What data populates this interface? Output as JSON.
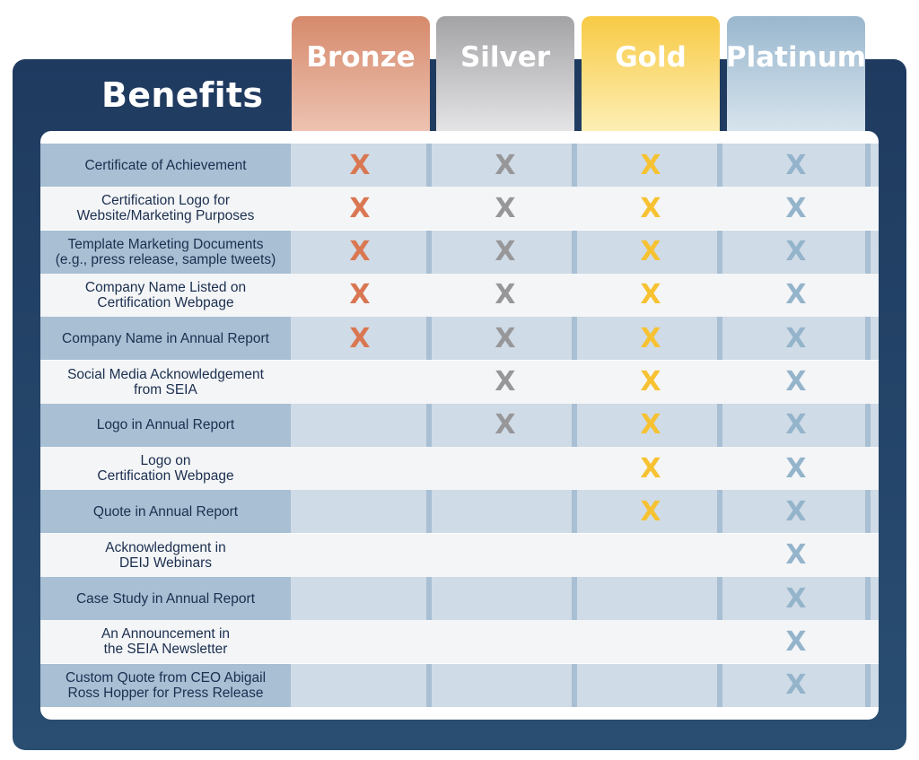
{
  "header": {
    "title": "Benefits"
  },
  "tiers": [
    {
      "name": "Bronze",
      "mark_color": "#d97752"
    },
    {
      "name": "Silver",
      "mark_color": "#97979a"
    },
    {
      "name": "Gold",
      "mark_color": "#f7c232"
    },
    {
      "name": "Platinum",
      "mark_color": "#94b4cb"
    }
  ],
  "mark_symbol": "X",
  "benefits": [
    {
      "label": "Certificate of Achievement",
      "included": [
        true,
        true,
        true,
        true
      ]
    },
    {
      "label": "Certification Logo for\nWebsite/Marketing Purposes",
      "included": [
        true,
        true,
        true,
        true
      ]
    },
    {
      "label": "Template Marketing Documents\n(e.g., press release, sample tweets)",
      "included": [
        true,
        true,
        true,
        true
      ]
    },
    {
      "label": "Company Name Listed on\nCertification Webpage",
      "included": [
        true,
        true,
        true,
        true
      ]
    },
    {
      "label": "Company Name in Annual Report",
      "included": [
        true,
        true,
        true,
        true
      ]
    },
    {
      "label": "Social Media Acknowledgement\nfrom SEIA",
      "included": [
        false,
        true,
        true,
        true
      ]
    },
    {
      "label": "Logo in Annual Report",
      "included": [
        false,
        true,
        true,
        true
      ]
    },
    {
      "label": "Logo on\nCertification Webpage",
      "included": [
        false,
        false,
        true,
        true
      ]
    },
    {
      "label": "Quote in Annual Report",
      "included": [
        false,
        false,
        true,
        true
      ]
    },
    {
      "label": "Acknowledgment in\nDEIJ Webinars",
      "included": [
        false,
        false,
        false,
        true
      ]
    },
    {
      "label": "Case Study in Annual Report",
      "included": [
        false,
        false,
        false,
        true
      ]
    },
    {
      "label": "An Announcement in\nthe SEIA Newsletter",
      "included": [
        false,
        false,
        false,
        true
      ]
    },
    {
      "label": "Custom Quote from CEO Abigail\nRoss Hopper for Press Release",
      "included": [
        false,
        false,
        false,
        true
      ]
    }
  ]
}
